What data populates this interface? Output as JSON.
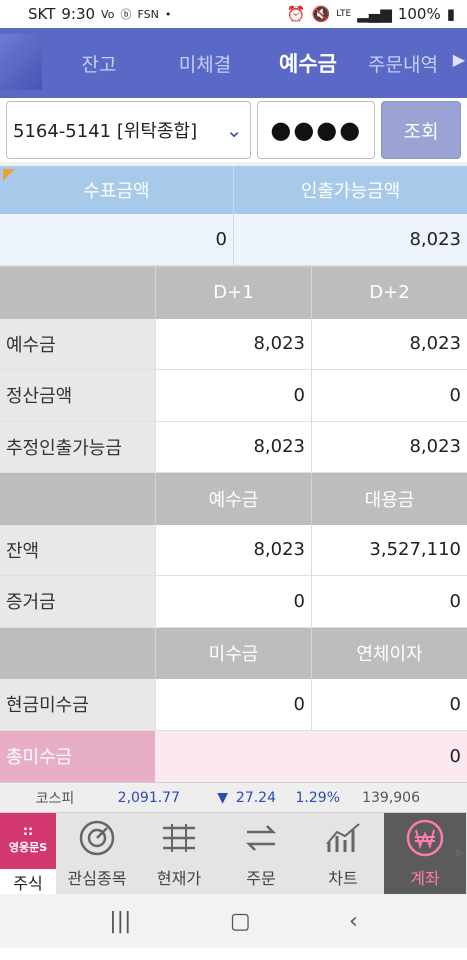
{
  "status_bar": {
    "carrier": "SKT",
    "time": "9:30",
    "icons_left": [
      "volte-icon",
      "b-icon",
      "fsn-icon",
      "dot-icon"
    ],
    "icons_right": [
      "alarm-icon",
      "mute-icon",
      "lte-icon",
      "signal-icon"
    ],
    "lte_label": "LTE",
    "battery": "100%"
  },
  "tabs": [
    {
      "label": "잔고",
      "active": false
    },
    {
      "label": "미체결",
      "active": false
    },
    {
      "label": "예수금",
      "active": true
    },
    {
      "label": "주문내역",
      "active": false
    }
  ],
  "account": {
    "number": "5164-5141 [위탁종합]",
    "password_mask": "●●●●",
    "query_button": "조회"
  },
  "summary": {
    "headers": [
      "수표금액",
      "인출가능금액"
    ],
    "values": [
      "0",
      "8,023"
    ]
  },
  "grid": {
    "sections": [
      {
        "headers": [
          "D+1",
          "D+2"
        ],
        "rows": [
          {
            "label": "예수금",
            "v1": "8,023",
            "v2": "8,023"
          },
          {
            "label": "정산금액",
            "v1": "0",
            "v2": "0"
          },
          {
            "label": "추정인출가능금",
            "v1": "8,023",
            "v2": "8,023"
          }
        ]
      },
      {
        "headers": [
          "예수금",
          "대용금"
        ],
        "rows": [
          {
            "label": "잔액",
            "v1": "8,023",
            "v2": "3,527,110"
          },
          {
            "label": "증거금",
            "v1": "0",
            "v2": "0"
          }
        ]
      },
      {
        "headers": [
          "미수금",
          "연체이자"
        ],
        "rows": [
          {
            "label": "현금미수금",
            "v1": "0",
            "v2": "0"
          }
        ]
      }
    ],
    "total": {
      "label": "총미수금",
      "value": "0"
    }
  },
  "ticker": {
    "name": "코스피",
    "index": "2,091.77",
    "direction": "▼",
    "change": "27.24",
    "percent": "1.29%",
    "volume": "139,906"
  },
  "bottom_nav": {
    "brand_label": "주식",
    "brand_logo_text": "영웅문S",
    "items": [
      {
        "label": "관심종목",
        "icon": "heart-target-icon"
      },
      {
        "label": "현재가",
        "icon": "price-list-icon"
      },
      {
        "label": "주문",
        "icon": "order-exchange-icon"
      },
      {
        "label": "차트",
        "icon": "chart-icon"
      },
      {
        "label": "계좌",
        "icon": "won-icon",
        "active": true
      }
    ]
  },
  "colors": {
    "tab_bg": "#5a68c6",
    "summary_head": "#a7c9ea",
    "grid_head": "#bdbdbd",
    "total_label": "#e8aec8",
    "ticker_blue": "#2a4bb5",
    "active_nav": "#ff7ab0"
  }
}
